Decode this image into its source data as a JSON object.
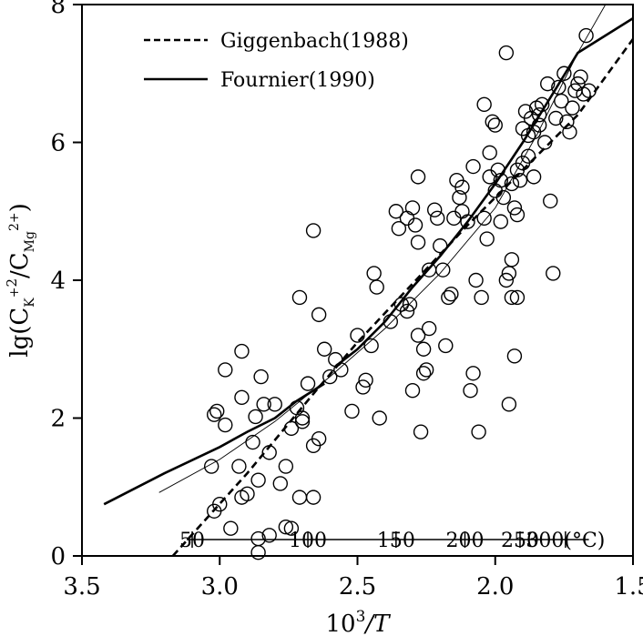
{
  "chart_data": {
    "type": "scatter",
    "x_axis": {
      "label_main": "10",
      "label_sup": "3",
      "label_end": "/T",
      "range": [
        3.5,
        1.5
      ],
      "reversed": true,
      "ticks": [
        {
          "value": 3.5,
          "label": "3.5"
        },
        {
          "value": 3.0,
          "label": "3.0"
        },
        {
          "value": 2.5,
          "label": "2.5"
        },
        {
          "value": 2.0,
          "label": "2.0"
        },
        {
          "value": 1.5,
          "label": "1.5"
        }
      ]
    },
    "y_axis": {
      "label_prefix": "lg(C",
      "label_sub1": "K",
      "label_sup1": "+",
      "label_pow": "2",
      "label_slash": "/C",
      "label_sub2": "Mg",
      "label_sup2": "2+",
      "label_close": ")",
      "range": [
        0,
        8
      ],
      "ticks": [
        {
          "value": 0,
          "label": "0"
        },
        {
          "value": 2,
          "label": "2"
        },
        {
          "value": 4,
          "label": "4"
        },
        {
          "value": 6,
          "label": "6"
        },
        {
          "value": 8,
          "label": "8"
        }
      ]
    },
    "temperature_scale": [
      {
        "x": 3.1,
        "label": "50"
      },
      {
        "x": 2.68,
        "label": "100"
      },
      {
        "x": 2.36,
        "label": "150"
      },
      {
        "x": 2.11,
        "label": "200"
      },
      {
        "x": 1.91,
        "label": "250"
      },
      {
        "x": 1.745,
        "label": "300(°C)"
      }
    ],
    "legend": [
      {
        "name": "Giggenbach(1988)",
        "style": "dashed"
      },
      {
        "name": "Fournier(1990)",
        "style": "solid"
      }
    ],
    "series": [
      {
        "name": "Giggenbach(1988)",
        "style": "dashed",
        "points": [
          [
            3.17,
            0.0
          ],
          [
            2.9,
            1.2
          ],
          [
            2.65,
            2.4
          ],
          [
            2.5,
            3.1
          ],
          [
            2.3,
            3.95
          ],
          [
            2.1,
            4.8
          ],
          [
            1.9,
            5.6
          ],
          [
            1.7,
            6.4
          ],
          [
            1.5,
            7.5
          ]
        ]
      },
      {
        "name": "Fournier(1990)",
        "style": "solid",
        "segments": [
          [
            [
              3.42,
              0.75
            ],
            [
              3.2,
              1.2
            ],
            [
              3.0,
              1.58
            ],
            [
              2.9,
              1.8
            ],
            [
              2.8,
              2.0
            ],
            [
              2.72,
              2.25
            ],
            [
              2.62,
              2.5
            ]
          ],
          [
            [
              2.57,
              2.78
            ],
            [
              2.5,
              3.0
            ],
            [
              2.4,
              3.4
            ],
            [
              2.3,
              3.9
            ],
            [
              2.2,
              4.35
            ],
            [
              2.1,
              4.85
            ],
            [
              2.0,
              5.4
            ],
            [
              1.9,
              6.0
            ],
            [
              1.8,
              6.65
            ],
            [
              1.7,
              7.3
            ],
            [
              1.5,
              7.8
            ]
          ]
        ]
      },
      {
        "name": "",
        "style": "thin",
        "points": [
          [
            3.22,
            0.92
          ],
          [
            3.0,
            1.4
          ],
          [
            2.8,
            1.95
          ],
          [
            2.6,
            2.6
          ],
          [
            2.4,
            3.3
          ],
          [
            2.2,
            4.1
          ],
          [
            2.0,
            5.05
          ],
          [
            1.85,
            6.1
          ],
          [
            1.7,
            7.3
          ],
          [
            1.6,
            8.0
          ]
        ]
      },
      {
        "name": "",
        "style": "circle",
        "points": [
          [
            3.03,
            1.3
          ],
          [
            3.02,
            2.05
          ],
          [
            3.01,
            2.1
          ],
          [
            2.98,
            1.9
          ],
          [
            2.98,
            2.7
          ],
          [
            2.93,
            1.3
          ],
          [
            2.92,
            2.3
          ],
          [
            2.92,
            2.97
          ],
          [
            2.9,
            0.9
          ],
          [
            2.88,
            1.65
          ],
          [
            2.87,
            2.02
          ],
          [
            2.86,
            1.1
          ],
          [
            2.85,
            2.6
          ],
          [
            2.84,
            2.2
          ],
          [
            2.82,
            1.5
          ],
          [
            2.8,
            2.2
          ],
          [
            2.78,
            1.05
          ],
          [
            2.76,
            1.3
          ],
          [
            2.74,
            1.85
          ],
          [
            2.72,
            2.15
          ],
          [
            2.71,
            0.85
          ],
          [
            2.7,
            2.0
          ],
          [
            2.7,
            1.95
          ],
          [
            2.68,
            2.5
          ],
          [
            2.66,
            0.85
          ],
          [
            2.66,
            1.6
          ],
          [
            2.64,
            1.7
          ],
          [
            2.71,
            3.75
          ],
          [
            2.66,
            4.72
          ],
          [
            2.64,
            3.5
          ],
          [
            2.62,
            3.0
          ],
          [
            2.6,
            2.6
          ],
          [
            2.58,
            2.85
          ],
          [
            2.56,
            2.7
          ],
          [
            2.52,
            2.1
          ],
          [
            2.5,
            3.2
          ],
          [
            2.48,
            2.45
          ],
          [
            2.47,
            2.55
          ],
          [
            2.45,
            3.05
          ],
          [
            2.44,
            4.1
          ],
          [
            2.43,
            3.9
          ],
          [
            2.42,
            2.0
          ],
          [
            2.38,
            3.4
          ],
          [
            2.36,
            5.0
          ],
          [
            2.34,
            3.65
          ],
          [
            2.32,
            3.55
          ],
          [
            2.31,
            3.65
          ],
          [
            2.3,
            5.05
          ],
          [
            2.29,
            4.8
          ],
          [
            2.28,
            4.55
          ],
          [
            2.28,
            3.2
          ],
          [
            2.26,
            3.0
          ],
          [
            2.26,
            2.65
          ],
          [
            2.25,
            2.7
          ],
          [
            2.24,
            3.3
          ],
          [
            2.24,
            4.15
          ],
          [
            2.22,
            5.02
          ],
          [
            2.21,
            4.9
          ],
          [
            2.2,
            4.5
          ],
          [
            2.19,
            4.15
          ],
          [
            2.18,
            3.05
          ],
          [
            2.17,
            3.75
          ],
          [
            2.16,
            3.8
          ],
          [
            2.15,
            4.9
          ],
          [
            2.14,
            5.45
          ],
          [
            2.13,
            5.2
          ],
          [
            2.12,
            5.0
          ],
          [
            2.1,
            4.85
          ],
          [
            2.09,
            2.4
          ],
          [
            2.08,
            2.65
          ],
          [
            2.07,
            4.0
          ],
          [
            2.06,
            1.8
          ],
          [
            2.05,
            3.75
          ],
          [
            2.04,
            4.9
          ],
          [
            2.03,
            4.6
          ],
          [
            2.02,
            5.5
          ],
          [
            2.0,
            5.3
          ],
          [
            1.99,
            5.6
          ],
          [
            1.98,
            4.85
          ],
          [
            1.97,
            5.2
          ],
          [
            1.96,
            4.0
          ],
          [
            1.95,
            4.1
          ],
          [
            1.94,
            3.75
          ],
          [
            1.93,
            5.05
          ],
          [
            1.92,
            4.95
          ],
          [
            1.91,
            5.45
          ],
          [
            1.9,
            5.7
          ],
          [
            1.9,
            6.2
          ],
          [
            1.89,
            6.45
          ],
          [
            1.88,
            6.1
          ],
          [
            1.87,
            6.35
          ],
          [
            1.86,
            5.5
          ],
          [
            1.85,
            6.5
          ],
          [
            1.84,
            6.25
          ],
          [
            1.83,
            6.55
          ],
          [
            1.82,
            6.0
          ],
          [
            1.81,
            6.85
          ],
          [
            1.8,
            5.15
          ],
          [
            1.79,
            4.1
          ],
          [
            1.78,
            6.35
          ],
          [
            1.77,
            6.8
          ],
          [
            1.76,
            6.6
          ],
          [
            1.75,
            7.0
          ],
          [
            1.74,
            6.3
          ],
          [
            1.73,
            6.15
          ],
          [
            1.72,
            6.5
          ],
          [
            1.71,
            6.75
          ],
          [
            1.7,
            6.85
          ],
          [
            1.69,
            6.95
          ],
          [
            1.68,
            6.7
          ],
          [
            1.67,
            7.55
          ],
          [
            1.66,
            6.75
          ],
          [
            1.96,
            7.3
          ],
          [
            2.0,
            6.25
          ],
          [
            2.01,
            6.3
          ],
          [
            2.02,
            5.85
          ],
          [
            2.04,
            6.55
          ],
          [
            1.93,
            2.9
          ],
          [
            1.95,
            2.2
          ],
          [
            1.92,
            3.75
          ],
          [
            1.94,
            4.3
          ],
          [
            2.3,
            2.4
          ],
          [
            2.27,
            1.8
          ],
          [
            2.28,
            5.5
          ],
          [
            2.35,
            4.75
          ],
          [
            2.32,
            4.9
          ],
          [
            2.86,
            0.25
          ],
          [
            2.86,
            0.05
          ],
          [
            2.82,
            0.3
          ],
          [
            2.76,
            0.42
          ],
          [
            2.74,
            0.4
          ],
          [
            2.96,
            0.4
          ],
          [
            3.0,
            0.75
          ],
          [
            3.02,
            0.65
          ],
          [
            2.92,
            0.85
          ],
          [
            2.12,
            5.35
          ],
          [
            2.08,
            5.65
          ],
          [
            1.98,
            5.45
          ],
          [
            1.94,
            5.4
          ],
          [
            1.92,
            5.6
          ],
          [
            1.88,
            5.8
          ],
          [
            1.86,
            6.15
          ],
          [
            1.84,
            6.4
          ]
        ]
      }
    ]
  }
}
